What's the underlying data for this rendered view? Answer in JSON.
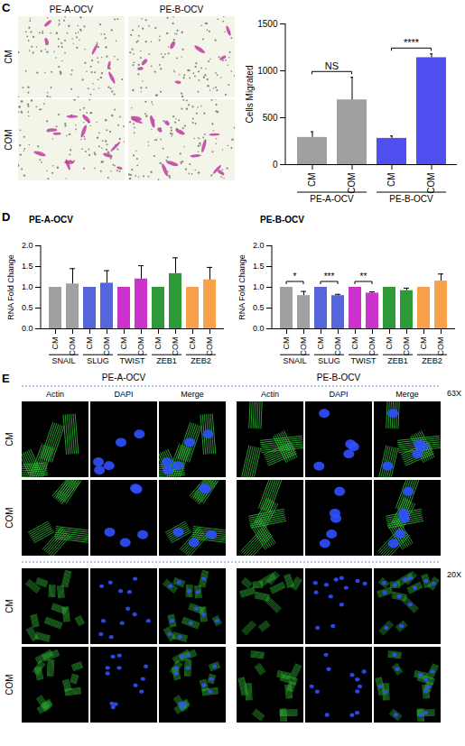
{
  "panels": [
    {
      "letter": "C",
      "images": {
        "columns": [
          "PE-A-OCV",
          "PE-B-OCV"
        ],
        "rows": [
          "CM",
          "COM"
        ]
      }
    },
    {
      "letter": "D"
    },
    {
      "letter": "E",
      "images": {
        "columns": [
          "PE-A-OCV",
          "PE-B-OCV"
        ],
        "channels": [
          "Actin",
          "DAPI",
          "Merge"
        ],
        "rows": [
          "CM",
          "COM"
        ],
        "magnifications": [
          "63X",
          "20X"
        ]
      }
    }
  ],
  "chart_data": [
    {
      "type": "bar",
      "y_label": "Cells Migrated",
      "categories": [
        "CM",
        "COM",
        "CM",
        "COM"
      ],
      "groups": [
        "PE-A-OCV",
        "PE-A-OCV",
        "PE-B-OCV",
        "PE-B-OCV"
      ],
      "values": [
        290,
        690,
        280,
        1140
      ],
      "errors": [
        60,
        240,
        25,
        40
      ],
      "colors": [
        "#a0a0a0",
        "#a0a0a0",
        "#5050f0",
        "#5050f0"
      ],
      "ylim": [
        0,
        1500
      ],
      "yticks": [
        0,
        500,
        1000,
        1500
      ],
      "annotations": [
        {
          "text": "NS",
          "between": [
            0,
            1
          ]
        },
        {
          "text": "****",
          "between": [
            2,
            3
          ]
        }
      ]
    },
    {
      "type": "bar",
      "title": "PE-A-OCV",
      "y_label": "RNA Fold Change",
      "categories": [
        "CM",
        "COM",
        "CM",
        "COM",
        "CM",
        "COM",
        "CM",
        "COM",
        "CM",
        "COM"
      ],
      "groups": [
        "SNAIL",
        "SNAIL",
        "SLUG",
        "SLUG",
        "TWIST",
        "TWIST",
        "ZEB1",
        "ZEB1",
        "ZEB2",
        "ZEB2"
      ],
      "values": [
        1,
        1.08,
        1,
        1.1,
        1,
        1.2,
        1,
        1.33,
        1,
        1.18
      ],
      "errors": [
        0,
        0.37,
        0,
        0.3,
        0,
        0.32,
        0,
        0.38,
        0,
        0.3
      ],
      "colors": [
        "#a0a0a0",
        "#a0a0a0",
        "#5566dd",
        "#5566dd",
        "#cc33cc",
        "#cc33cc",
        "#2e9a3a",
        "#2e9a3a",
        "#f7a14a",
        "#f7a14a"
      ],
      "ylim": [
        0,
        2
      ],
      "yticks": [
        {
          "value": 0,
          "label": "0.0"
        },
        0.5,
        {
          "value": 1,
          "label": "1.0"
        },
        1.5,
        {
          "value": 2,
          "label": "2.0"
        }
      ]
    },
    {
      "type": "bar",
      "title": "PE-B-OCV",
      "y_label": "RNA Fold Change",
      "categories": [
        "CM",
        "COM",
        "CM",
        "COM",
        "CM",
        "COM",
        "CM",
        "COM",
        "CM",
        "COM"
      ],
      "groups": [
        "SNAIL",
        "SNAIL",
        "SLUG",
        "SLUG",
        "TWIST",
        "TWIST",
        "ZEB1",
        "ZEB1",
        "ZEB2",
        "ZEB2"
      ],
      "values": [
        1,
        0.8,
        1,
        0.8,
        1,
        0.86,
        1,
        0.92,
        1,
        1.15
      ],
      "errors": [
        0,
        0.1,
        0,
        0.03,
        0,
        0.03,
        0,
        0.06,
        0,
        0.17
      ],
      "colors": [
        "#a0a0a0",
        "#a0a0a0",
        "#5566dd",
        "#5566dd",
        "#cc33cc",
        "#cc33cc",
        "#2e9a3a",
        "#2e9a3a",
        "#f7a14a",
        "#f7a14a"
      ],
      "ylim": [
        0,
        2
      ],
      "yticks": [
        {
          "value": 0,
          "label": "0.0"
        },
        0.5,
        {
          "value": 1,
          "label": "1.0"
        },
        1.5,
        {
          "value": 2,
          "label": "2.0"
        }
      ],
      "annotations": [
        {
          "text": "*",
          "between": [
            0,
            1
          ]
        },
        {
          "text": "***",
          "between": [
            2,
            3
          ]
        },
        {
          "text": "**",
          "between": [
            4,
            5
          ]
        }
      ]
    }
  ]
}
